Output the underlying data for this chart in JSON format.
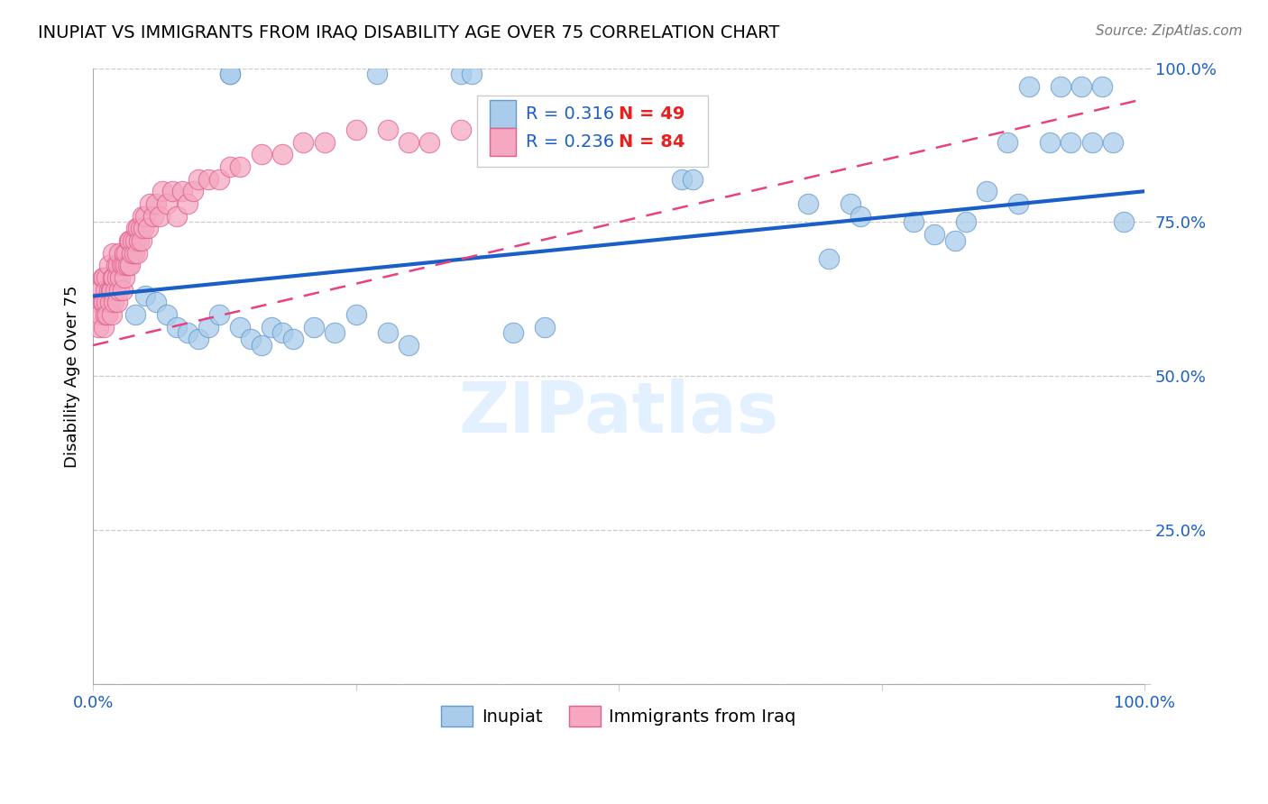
{
  "title": "INUPIAT VS IMMIGRANTS FROM IRAQ DISABILITY AGE OVER 75 CORRELATION CHART",
  "source": "Source: ZipAtlas.com",
  "ylabel_label": "Disability Age Over 75",
  "watermark": "ZIPatlas",
  "R_inupiat": 0.316,
  "N_inupiat": 49,
  "R_iraq": 0.236,
  "N_iraq": 84,
  "xlim": [
    0.0,
    1.0
  ],
  "ylim": [
    0.0,
    1.0
  ],
  "inupiat_color": "#A8CCEA",
  "inupiat_edge": "#6699CC",
  "iraq_color": "#F5A8C0",
  "iraq_edge": "#E06090",
  "line_blue": "#1A5FC8",
  "line_pink": "#E84080",
  "legend_R_color": "#1A5FC8",
  "legend_N_color": "#E82020",
  "inupiat_x": [
    0.13,
    0.13,
    0.27,
    0.35,
    0.36,
    0.56,
    0.57,
    0.68,
    0.7,
    0.72,
    0.73,
    0.78,
    0.82,
    0.85,
    0.87,
    0.88,
    0.89,
    0.91,
    0.92,
    0.93,
    0.94,
    0.95,
    0.96,
    0.97,
    0.98,
    0.04,
    0.05,
    0.06,
    0.07,
    0.08,
    0.09,
    0.1,
    0.11,
    0.12,
    0.14,
    0.15,
    0.16,
    0.17,
    0.18,
    0.19,
    0.21,
    0.23,
    0.25,
    0.28,
    0.3,
    0.4,
    0.43,
    0.8,
    0.83
  ],
  "inupiat_y": [
    0.99,
    0.99,
    0.99,
    0.99,
    0.99,
    0.82,
    0.82,
    0.78,
    0.69,
    0.78,
    0.76,
    0.75,
    0.72,
    0.8,
    0.88,
    0.78,
    0.97,
    0.88,
    0.97,
    0.88,
    0.97,
    0.88,
    0.97,
    0.88,
    0.75,
    0.6,
    0.63,
    0.62,
    0.6,
    0.58,
    0.57,
    0.56,
    0.58,
    0.6,
    0.58,
    0.56,
    0.55,
    0.58,
    0.57,
    0.56,
    0.58,
    0.57,
    0.6,
    0.57,
    0.55,
    0.57,
    0.58,
    0.73,
    0.75
  ],
  "iraq_x": [
    0.005,
    0.005,
    0.007,
    0.007,
    0.009,
    0.009,
    0.01,
    0.01,
    0.01,
    0.012,
    0.012,
    0.013,
    0.013,
    0.014,
    0.015,
    0.015,
    0.016,
    0.017,
    0.018,
    0.018,
    0.019,
    0.019,
    0.02,
    0.02,
    0.021,
    0.022,
    0.023,
    0.023,
    0.024,
    0.025,
    0.025,
    0.026,
    0.027,
    0.028,
    0.029,
    0.03,
    0.03,
    0.031,
    0.032,
    0.033,
    0.034,
    0.035,
    0.035,
    0.037,
    0.038,
    0.039,
    0.04,
    0.041,
    0.042,
    0.043,
    0.044,
    0.045,
    0.046,
    0.047,
    0.048,
    0.05,
    0.052,
    0.054,
    0.057,
    0.06,
    0.063,
    0.066,
    0.07,
    0.075,
    0.08,
    0.085,
    0.09,
    0.095,
    0.1,
    0.11,
    0.12,
    0.13,
    0.14,
    0.16,
    0.18,
    0.2,
    0.22,
    0.25,
    0.28,
    0.3,
    0.32,
    0.35,
    0.38,
    0.4
  ],
  "iraq_y": [
    0.58,
    0.62,
    0.6,
    0.64,
    0.62,
    0.66,
    0.58,
    0.62,
    0.66,
    0.6,
    0.64,
    0.62,
    0.66,
    0.6,
    0.64,
    0.68,
    0.62,
    0.64,
    0.6,
    0.64,
    0.66,
    0.7,
    0.62,
    0.66,
    0.64,
    0.68,
    0.62,
    0.66,
    0.68,
    0.64,
    0.7,
    0.66,
    0.68,
    0.64,
    0.68,
    0.66,
    0.7,
    0.68,
    0.7,
    0.68,
    0.72,
    0.68,
    0.72,
    0.7,
    0.72,
    0.7,
    0.72,
    0.74,
    0.7,
    0.74,
    0.72,
    0.74,
    0.72,
    0.76,
    0.74,
    0.76,
    0.74,
    0.78,
    0.76,
    0.78,
    0.76,
    0.8,
    0.78,
    0.8,
    0.76,
    0.8,
    0.78,
    0.8,
    0.82,
    0.82,
    0.82,
    0.84,
    0.84,
    0.86,
    0.86,
    0.88,
    0.88,
    0.9,
    0.9,
    0.88,
    0.88,
    0.9,
    0.9,
    0.88
  ]
}
